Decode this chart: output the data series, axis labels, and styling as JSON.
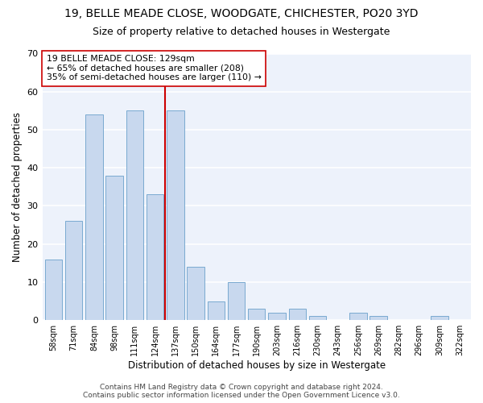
{
  "title1": "19, BELLE MEADE CLOSE, WOODGATE, CHICHESTER, PO20 3YD",
  "title2": "Size of property relative to detached houses in Westergate",
  "xlabel": "Distribution of detached houses by size in Westergate",
  "ylabel": "Number of detached properties",
  "bar_color": "#c8d8ee",
  "bar_edge_color": "#7aaad0",
  "categories": [
    "58sqm",
    "71sqm",
    "84sqm",
    "98sqm",
    "111sqm",
    "124sqm",
    "137sqm",
    "150sqm",
    "164sqm",
    "177sqm",
    "190sqm",
    "203sqm",
    "216sqm",
    "230sqm",
    "243sqm",
    "256sqm",
    "269sqm",
    "282sqm",
    "296sqm",
    "309sqm",
    "322sqm"
  ],
  "values": [
    16,
    26,
    54,
    38,
    55,
    33,
    55,
    14,
    5,
    10,
    3,
    2,
    3,
    1,
    0,
    2,
    1,
    0,
    0,
    1,
    0
  ],
  "vline_x": 5.5,
  "vline_color": "#cc0000",
  "annotation_text": "19 BELLE MEADE CLOSE: 129sqm\n← 65% of detached houses are smaller (208)\n35% of semi-detached houses are larger (110) →",
  "annotation_box_color": "#ffffff",
  "annotation_box_edge": "#cc0000",
  "ylim": [
    0,
    70
  ],
  "yticks": [
    0,
    10,
    20,
    30,
    40,
    50,
    60,
    70
  ],
  "footer": "Contains HM Land Registry data © Crown copyright and database right 2024.\nContains public sector information licensed under the Open Government Licence v3.0.",
  "bg_color": "#edf2fb",
  "grid_color": "#ffffff",
  "title1_fontsize": 10,
  "title2_fontsize": 9,
  "xlabel_fontsize": 8.5,
  "ylabel_fontsize": 8.5,
  "footer_fontsize": 6.5
}
